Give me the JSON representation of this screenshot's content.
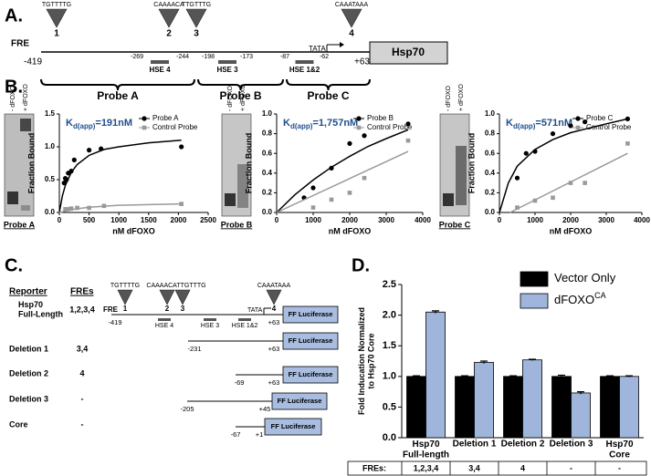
{
  "panel_a": {
    "label": "A.",
    "fre": "FRE",
    "start": "-419",
    "end": "+63",
    "tata": "TATA",
    "gene": "Hsp70",
    "sites": [
      {
        "seq": "TGTTTTG",
        "num": "1"
      },
      {
        "seq": "CAAAACA",
        "num": "2"
      },
      {
        "seq": "TTGTTTG",
        "num": "3"
      },
      {
        "seq": "CAAATAAA",
        "num": "4"
      }
    ],
    "hse": [
      {
        "name": "HSE 4",
        "from": "-269",
        "to": "-244"
      },
      {
        "name": "HSE 3",
        "from": "-198",
        "to": "-173"
      },
      {
        "name": "HSE 1&2",
        "from": "-87",
        "to": "-62"
      }
    ],
    "probes": [
      "Probe A",
      "Probe B",
      "Probe C"
    ]
  },
  "panel_b": {
    "label": "B.",
    "gels": [
      {
        "lanes": [
          "- dFOXO",
          "+ dFOXO"
        ],
        "caption": "Probe A"
      },
      {
        "lanes": [
          "- dFOXO",
          "+ dFOXO"
        ],
        "caption": "Probe B"
      },
      {
        "lanes": [
          "- dFOXO",
          "+ dFOXO"
        ],
        "caption": "Probe C"
      }
    ]
  },
  "panel_c": {
    "label": "C.",
    "reporter_header": "Reporter",
    "fres_header": "FREs",
    "fre": "FRE",
    "tata": "TATA",
    "sites": [
      {
        "seq": "TGTTTTG",
        "nums": [
          "1"
        ]
      },
      {
        "seq": "CAAAACATTGTTTG",
        "nums": [
          "2",
          "3"
        ]
      },
      {
        "seq": "CAAATAAA",
        "nums": [
          "4"
        ]
      }
    ],
    "hse": [
      "HSE 4",
      "HSE 3",
      "HSE 1&2"
    ],
    "constructs": [
      {
        "name": "Hsp70\nFull-Length",
        "fres": "1,2,3,4",
        "start": "-419",
        "end": "+63",
        "box": "FF Luciferase"
      },
      {
        "name": "Deletion 1",
        "fres": "3,4",
        "start": "-231",
        "end": "+63",
        "box": "FF Luciferase"
      },
      {
        "name": "Deletion 2",
        "fres": "4",
        "start": "-69",
        "end": "+63",
        "box": "FF Luciferase"
      },
      {
        "name": "Deletion 3",
        "fres": "-",
        "start": "-205",
        "end": "+45",
        "box": "FF Luciferase"
      },
      {
        "name": "Core",
        "fres": "-",
        "start": "-67",
        "end": "+1",
        "box": "FF Luciferase"
      }
    ]
  },
  "panel_d": {
    "label": "D.",
    "table": {
      "header": "FREs:",
      "cells": [
        "1,2,3,4",
        "3,4",
        "4",
        "-",
        "-"
      ]
    }
  },
  "chart_data": [
    {
      "type": "scatter",
      "xlabel": "nM dFOXO",
      "ylabel": "Fraction Bound",
      "annotation": {
        "k": "K",
        "sub": "d(app)",
        "text": "=191nM"
      },
      "xlim": [
        0,
        2500
      ],
      "xticks": [
        0,
        500,
        1000,
        1500,
        2000,
        2500
      ],
      "ylim": [
        0,
        1.5
      ],
      "yticks": [
        {
          "value": 0,
          "label": "0.0"
        },
        {
          "value": 0.5,
          "label": "0.5"
        },
        {
          "value": 1,
          "label": "1.0"
        },
        {
          "value": 1.5,
          "label": "1.5"
        }
      ],
      "series": [
        {
          "name": "Probe A",
          "color": "#000000",
          "marker": "circle",
          "x": [
            80,
            100,
            120,
            150,
            200,
            250,
            500,
            700,
            2050
          ],
          "values": [
            0.45,
            0.52,
            0.5,
            0.6,
            0.63,
            0.8,
            0.95,
            0.97,
            1.0
          ],
          "curve": {
            "x": [
              0,
              50,
              100,
              200,
              300,
              500,
              750,
              1000,
              1500,
              2050
            ],
            "values": [
              0,
              0.25,
              0.41,
              0.61,
              0.73,
              0.87,
              0.96,
              1.0,
              1.06,
              1.1
            ]
          }
        },
        {
          "name": "Control Probe",
          "color": "#999999",
          "marker": "square",
          "x": [
            100,
            150,
            200,
            300,
            500,
            750,
            2050
          ],
          "values": [
            0.05,
            0.05,
            0.06,
            0.07,
            0.07,
            0.1,
            0.13
          ],
          "curve": {
            "x": [
              0,
              250,
              500,
              1000,
              1500,
              2050
            ],
            "values": [
              0,
              0.05,
              0.08,
              0.11,
              0.12,
              0.13
            ]
          }
        }
      ]
    },
    {
      "type": "scatter",
      "xlabel": "nM dFOXO",
      "ylabel": "Fraction Bound",
      "annotation": {
        "k": "K",
        "sub": "d(app)",
        "text": "=1,757nM"
      },
      "xlim": [
        0,
        4000
      ],
      "xticks": [
        0,
        1000,
        2000,
        3000,
        4000
      ],
      "ylim": [
        0,
        1
      ],
      "yticks": [
        {
          "value": 0,
          "label": "0.0"
        },
        {
          "value": 0.2,
          "label": "0.2"
        },
        {
          "value": 0.4,
          "label": "0.4"
        },
        {
          "value": 0.6,
          "label": "0.6"
        },
        {
          "value": 0.8,
          "label": "0.8"
        },
        {
          "value": 1,
          "label": "1.0"
        }
      ],
      "series": [
        {
          "name": "Probe B",
          "color": "#000000",
          "marker": "circle",
          "x": [
            750,
            1000,
            1500,
            2000,
            2400,
            3600
          ],
          "values": [
            0.15,
            0.25,
            0.45,
            0.7,
            0.78,
            0.9
          ],
          "curve": {
            "x": [
              0,
              500,
              1000,
              1500,
              2000,
              2500,
              3000,
              3600
            ],
            "values": [
              0,
              0.18,
              0.33,
              0.46,
              0.57,
              0.67,
              0.75,
              0.84
            ]
          }
        },
        {
          "name": "Control Probe",
          "color": "#999999",
          "marker": "square",
          "x": [
            1000,
            1500,
            2000,
            2400,
            3600
          ],
          "values": [
            0.05,
            0.13,
            0.2,
            0.35,
            0.73
          ],
          "curve": {
            "x": [
              0,
              3600
            ],
            "values": [
              0,
              0.62
            ]
          }
        }
      ]
    },
    {
      "type": "scatter",
      "xlabel": "nM dFOXO",
      "ylabel": "Fraction Bound",
      "annotation": {
        "k": "K",
        "sub": "d(app)",
        "text": "=571nM"
      },
      "xlim": [
        0,
        4000
      ],
      "xticks": [
        0,
        1000,
        2000,
        3000,
        4000
      ],
      "ylim": [
        0,
        1
      ],
      "yticks": [
        {
          "value": 0,
          "label": "0.0"
        },
        {
          "value": 0.2,
          "label": "0.2"
        },
        {
          "value": 0.4,
          "label": "0.4"
        },
        {
          "value": 0.6,
          "label": "0.6"
        },
        {
          "value": 0.8,
          "label": "0.8"
        },
        {
          "value": 1,
          "label": "1.0"
        }
      ],
      "series": [
        {
          "name": "Probe C",
          "color": "#000000",
          "marker": "circle",
          "x": [
            500,
            750,
            1000,
            1500,
            2000,
            2400,
            3600
          ],
          "values": [
            0.35,
            0.6,
            0.62,
            0.8,
            0.88,
            0.92,
            0.95
          ],
          "curve": {
            "x": [
              0,
              250,
              500,
              1000,
              1500,
              2000,
              3000,
              3600
            ],
            "values": [
              0,
              0.3,
              0.47,
              0.64,
              0.74,
              0.81,
              0.9,
              0.95
            ]
          }
        },
        {
          "name": "Control Probe",
          "color": "#999999",
          "marker": "square",
          "x": [
            500,
            1000,
            1500,
            2000,
            2400,
            3600
          ],
          "values": [
            0.05,
            0.12,
            0.15,
            0.3,
            0.3,
            0.7
          ],
          "curve": {
            "x": [
              300,
              3600
            ],
            "values": [
              0,
              0.6
            ]
          }
        }
      ]
    },
    {
      "type": "bar",
      "ylabel": "Fold Inducation Normalized\nto Hsp70 Core",
      "categories": [
        "Hsp70\nFull-length",
        "Deletion 1",
        "Deletion 2",
        "Deletion 3",
        "Hsp70\nCore"
      ],
      "ylim": [
        0,
        2.5
      ],
      "yticks": [
        {
          "value": 0,
          "label": "0.0"
        },
        {
          "value": 0.5,
          "label": "0.5"
        },
        {
          "value": 1,
          "label": "1.0"
        },
        {
          "value": 1.5,
          "label": "1.5"
        },
        {
          "value": 2,
          "label": "2.0"
        },
        {
          "value": 2.5,
          "label": "2.5"
        }
      ],
      "series": [
        {
          "name": "Vector Only",
          "color": "#000000",
          "values": [
            1,
            1,
            1,
            1,
            1
          ],
          "errors": [
            0.01,
            0.01,
            0.01,
            0.02,
            0.01
          ]
        },
        {
          "name": "dFOXO",
          "name_superscript": "CA",
          "color": "#9fb5dc",
          "values": [
            2.05,
            1.23,
            1.27,
            0.73,
            1.0
          ],
          "errors": [
            0.02,
            0.02,
            0.01,
            0.02,
            0.01
          ]
        }
      ]
    }
  ]
}
